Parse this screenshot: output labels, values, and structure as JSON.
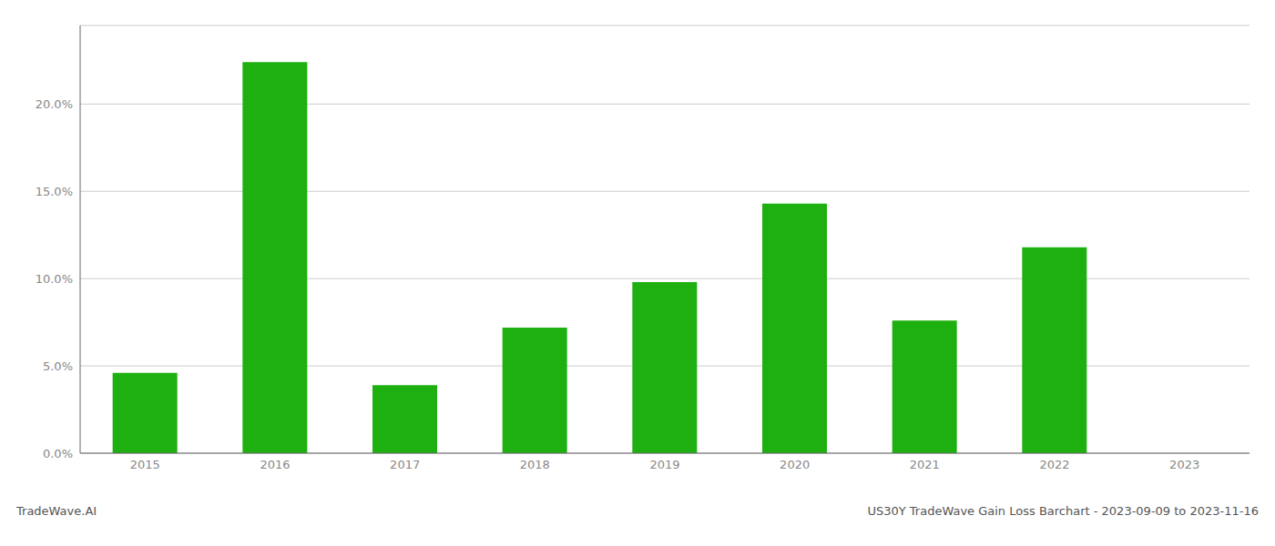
{
  "chart_data": {
    "type": "bar",
    "categories": [
      "2015",
      "2016",
      "2017",
      "2018",
      "2019",
      "2020",
      "2021",
      "2022",
      "2023"
    ],
    "values": [
      0.046,
      0.224,
      0.039,
      0.072,
      0.098,
      0.143,
      0.076,
      0.118,
      0.0
    ],
    "color": "#1db010",
    "ylim": [
      0,
      0.245
    ],
    "yticks": [
      {
        "value": 0.0,
        "label": "0.0%"
      },
      {
        "value": 0.05,
        "label": "5.0%"
      },
      {
        "value": 0.1,
        "label": "10.0%"
      },
      {
        "value": 0.15,
        "label": "15.0%"
      },
      {
        "value": 0.2,
        "label": "20.0%"
      }
    ],
    "grid": true,
    "annotations": [
      "TradeWave.AI",
      "US30Y TradeWave Gain Loss Barchart - 2023-09-09 to 2023-11-16"
    ]
  }
}
